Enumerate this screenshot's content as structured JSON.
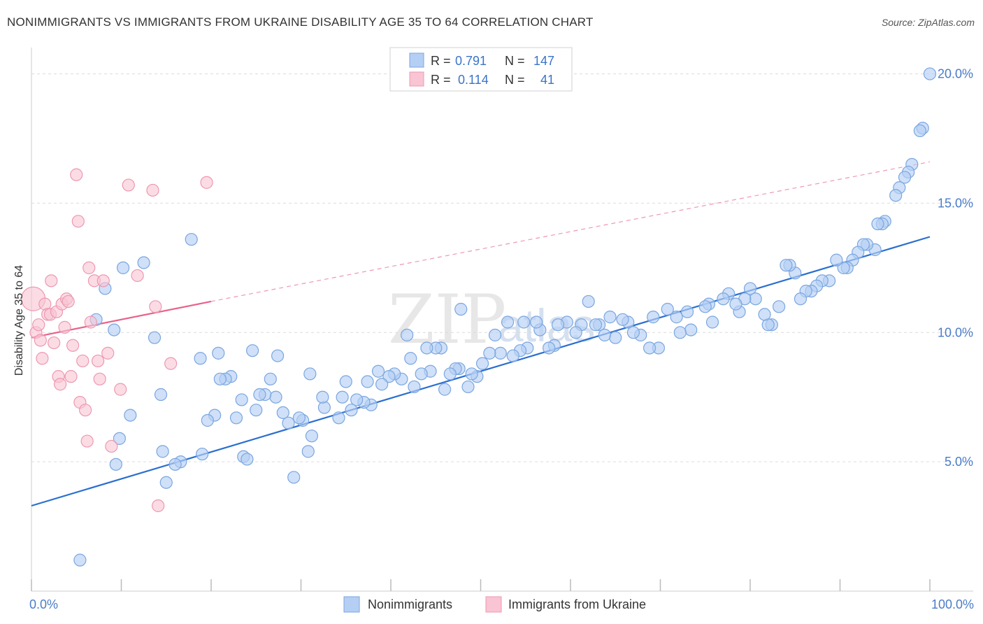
{
  "title": "NONIMMIGRANTS VS IMMIGRANTS FROM UKRAINE DISABILITY AGE 35 TO 64 CORRELATION CHART",
  "source": "Source: ZipAtlas.com",
  "watermark": {
    "left": "ZIP",
    "right": "atlas"
  },
  "colors": {
    "blue_fill": "#b5cff4",
    "blue_stroke": "#7aa6e0",
    "blue_line": "#2a6fd0",
    "pink_fill": "#f9c4d3",
    "pink_stroke": "#ee98b0",
    "pink_line": "#e8628a",
    "grid": "#dcdcdc",
    "tick_label": "#4a7cc9"
  },
  "legend_top": [
    {
      "r_label": "R =",
      "r_value": "0.791",
      "n_label": "N =",
      "n_value": "147"
    },
    {
      "r_label": "R =",
      "r_value": "0.114",
      "n_label": "N =",
      "n_value": "41"
    }
  ],
  "legend_bottom": [
    {
      "label": "Nonimmigrants"
    },
    {
      "label": "Immigrants from Ukraine"
    }
  ],
  "chart_data": {
    "type": "scatter",
    "title": "NONIMMIGRANTS VS IMMIGRANTS FROM UKRAINE DISABILITY AGE 35 TO 64 CORRELATION CHART",
    "xlabel": "",
    "ylabel": "Disability Age 35 to 64",
    "xlim": [
      0,
      100
    ],
    "ylim": [
      0,
      20.8
    ],
    "x_tick_labels": [
      {
        "value": 0,
        "label": "0.0%"
      },
      {
        "value": 100,
        "label": "100.0%"
      }
    ],
    "y_tick_labels": [
      {
        "value": 5,
        "label": "5.0%"
      },
      {
        "value": 10,
        "label": "10.0%"
      },
      {
        "value": 15,
        "label": "15.0%"
      },
      {
        "value": 20,
        "label": "20.0%"
      }
    ],
    "grid": "horizontal dashed",
    "legend_position": "top-center",
    "series": [
      {
        "name": "Nonimmigrants",
        "color": "#b5cff4",
        "trend": {
          "x0": 0,
          "y0": 3.3,
          "x1": 100,
          "y1": 13.7
        },
        "points": [
          [
            100,
            20.0
          ],
          [
            99.2,
            17.9
          ],
          [
            98.9,
            17.8
          ],
          [
            98,
            16.5
          ],
          [
            97.6,
            16.2
          ],
          [
            97.2,
            16.0
          ],
          [
            96.6,
            15.6
          ],
          [
            96.2,
            15.3
          ],
          [
            95,
            14.3
          ],
          [
            94.7,
            14.2
          ],
          [
            94.2,
            14.2
          ],
          [
            93.9,
            13.2
          ],
          [
            93,
            13.4
          ],
          [
            92.6,
            13.4
          ],
          [
            92,
            13.1
          ],
          [
            91.4,
            12.8
          ],
          [
            90.8,
            12.5
          ],
          [
            90.4,
            12.5
          ],
          [
            89.6,
            12.8
          ],
          [
            88.8,
            12.0
          ],
          [
            88,
            12.0
          ],
          [
            87.4,
            11.8
          ],
          [
            86.8,
            11.6
          ],
          [
            86.2,
            11.6
          ],
          [
            85.6,
            11.3
          ],
          [
            85,
            12.3
          ],
          [
            84.4,
            12.6
          ],
          [
            84,
            12.6
          ],
          [
            83.2,
            11.0
          ],
          [
            82.4,
            10.3
          ],
          [
            82,
            10.3
          ],
          [
            81.6,
            10.7
          ],
          [
            80.6,
            11.3
          ],
          [
            80,
            11.7
          ],
          [
            79.4,
            11.3
          ],
          [
            78.8,
            10.8
          ],
          [
            78.4,
            11.1
          ],
          [
            77.6,
            11.5
          ],
          [
            77,
            11.3
          ],
          [
            75.8,
            10.4
          ],
          [
            75.4,
            11.1
          ],
          [
            75,
            11.0
          ],
          [
            73.4,
            10.1
          ],
          [
            73,
            10.8
          ],
          [
            72.2,
            10.0
          ],
          [
            71.8,
            10.6
          ],
          [
            70.8,
            10.9
          ],
          [
            69.8,
            9.4
          ],
          [
            69.2,
            10.6
          ],
          [
            68.8,
            9.4
          ],
          [
            67.8,
            9.9
          ],
          [
            67,
            10.0
          ],
          [
            66.4,
            10.4
          ],
          [
            65.8,
            10.5
          ],
          [
            65,
            9.8
          ],
          [
            64.4,
            10.6
          ],
          [
            63.8,
            9.9
          ],
          [
            63.2,
            10.3
          ],
          [
            62.8,
            10.3
          ],
          [
            62,
            11.2
          ],
          [
            61.2,
            10.3
          ],
          [
            60.6,
            10.0
          ],
          [
            59.6,
            10.4
          ],
          [
            58.6,
            10.3
          ],
          [
            58.2,
            9.5
          ],
          [
            57.6,
            9.4
          ],
          [
            56.6,
            10.1
          ],
          [
            56.2,
            10.4
          ],
          [
            55.2,
            9.4
          ],
          [
            54.8,
            10.4
          ],
          [
            54.4,
            9.3
          ],
          [
            53.6,
            9.1
          ],
          [
            53,
            10.4
          ],
          [
            52.2,
            9.2
          ],
          [
            51.6,
            9.9
          ],
          [
            51,
            9.2
          ],
          [
            50.2,
            8.8
          ],
          [
            49.6,
            8.3
          ],
          [
            49,
            8.4
          ],
          [
            48.6,
            7.9
          ],
          [
            47.8,
            10.9
          ],
          [
            47.6,
            8.6
          ],
          [
            47.2,
            8.6
          ],
          [
            46.6,
            8.4
          ],
          [
            46,
            7.8
          ],
          [
            45.6,
            9.4
          ],
          [
            45,
            9.4
          ],
          [
            44.4,
            8.5
          ],
          [
            44,
            9.4
          ],
          [
            43.4,
            8.4
          ],
          [
            42.6,
            7.9
          ],
          [
            42.2,
            9.0
          ],
          [
            41.8,
            9.9
          ],
          [
            41.2,
            8.2
          ],
          [
            40.4,
            8.4
          ],
          [
            39.8,
            8.3
          ],
          [
            39,
            8.0
          ],
          [
            38.6,
            8.5
          ],
          [
            37.8,
            7.2
          ],
          [
            37.4,
            8.1
          ],
          [
            37,
            7.3
          ],
          [
            36.2,
            7.4
          ],
          [
            35.6,
            7.0
          ],
          [
            35,
            8.1
          ],
          [
            34.6,
            7.5
          ],
          [
            34.2,
            6.7
          ],
          [
            32.6,
            7.1
          ],
          [
            32.4,
            7.5
          ],
          [
            31,
            8.4
          ],
          [
            31.2,
            6.0
          ],
          [
            30.8,
            5.4
          ],
          [
            30.2,
            6.6
          ],
          [
            29.2,
            4.4
          ],
          [
            29.8,
            6.7
          ],
          [
            28.6,
            6.5
          ],
          [
            28,
            6.9
          ],
          [
            27.4,
            9.1
          ],
          [
            27.2,
            7.5
          ],
          [
            26.6,
            8.2
          ],
          [
            26,
            7.6
          ],
          [
            25.4,
            7.6
          ],
          [
            25.0,
            7.0
          ],
          [
            24.6,
            9.3
          ],
          [
            23.6,
            5.2
          ],
          [
            23.4,
            7.4
          ],
          [
            22.8,
            6.7
          ],
          [
            22.2,
            8.3
          ],
          [
            21.6,
            8.2
          ],
          [
            21,
            8.2
          ],
          [
            20.4,
            6.8
          ],
          [
            20.8,
            9.2
          ],
          [
            19.6,
            6.6
          ],
          [
            19,
            5.3
          ],
          [
            18.8,
            9.0
          ],
          [
            17.8,
            13.6
          ],
          [
            16.6,
            5.0
          ],
          [
            16,
            4.9
          ],
          [
            15.0,
            4.2
          ],
          [
            14.6,
            5.4
          ],
          [
            14.4,
            7.6
          ],
          [
            10.2,
            12.5
          ],
          [
            9.2,
            10.1
          ],
          [
            12.5,
            12.7
          ],
          [
            11,
            6.8
          ],
          [
            9.8,
            5.9
          ],
          [
            9.4,
            4.9
          ],
          [
            8.2,
            11.7
          ],
          [
            7.2,
            10.5
          ],
          [
            5.4,
            1.2
          ],
          [
            13.7,
            9.8
          ],
          [
            24,
            5.1
          ]
        ]
      },
      {
        "name": "Immigrants from Ukraine",
        "color": "#f9c4d3",
        "trend": {
          "x0": 0,
          "y0": 9.8,
          "x1": 20,
          "y1": 11.2
        },
        "trend_extension": {
          "x0": 20,
          "y0": 11.2,
          "x1": 100,
          "y1": 16.6
        },
        "points": [
          [
            0.2,
            11.3
          ],
          [
            0.5,
            10.0
          ],
          [
            0.8,
            10.3
          ],
          [
            1.0,
            9.7
          ],
          [
            1.2,
            9.0
          ],
          [
            1.5,
            11.1
          ],
          [
            1.8,
            10.7
          ],
          [
            2.1,
            10.7
          ],
          [
            2.2,
            12.0
          ],
          [
            2.5,
            9.6
          ],
          [
            2.8,
            10.8
          ],
          [
            3.0,
            8.3
          ],
          [
            3.2,
            8.0
          ],
          [
            3.4,
            11.1
          ],
          [
            3.7,
            10.2
          ],
          [
            3.9,
            11.3
          ],
          [
            4.1,
            11.2
          ],
          [
            4.4,
            8.3
          ],
          [
            4.6,
            9.5
          ],
          [
            5.0,
            16.1
          ],
          [
            5.2,
            14.3
          ],
          [
            5.4,
            7.3
          ],
          [
            5.7,
            8.9
          ],
          [
            6.0,
            7.0
          ],
          [
            6.2,
            5.8
          ],
          [
            6.4,
            12.5
          ],
          [
            6.6,
            10.4
          ],
          [
            7.0,
            12.0
          ],
          [
            7.4,
            8.9
          ],
          [
            7.6,
            8.2
          ],
          [
            8.0,
            12.0
          ],
          [
            8.5,
            9.2
          ],
          [
            8.9,
            5.6
          ],
          [
            9.9,
            7.8
          ],
          [
            10.8,
            15.7
          ],
          [
            11.8,
            12.2
          ],
          [
            13.5,
            15.5
          ],
          [
            13.8,
            11.0
          ],
          [
            14.1,
            3.3
          ],
          [
            15.5,
            8.8
          ],
          [
            19.5,
            15.8
          ]
        ]
      }
    ]
  }
}
